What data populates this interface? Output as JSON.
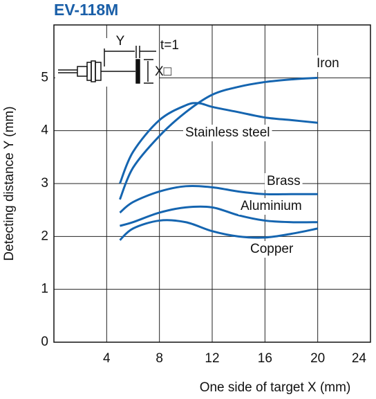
{
  "chart_data": {
    "type": "line",
    "title": "EV-118M",
    "xlabel": "One side of target X (mm)",
    "ylabel": "Detecting distance Y (mm)",
    "xlim": [
      0,
      24
    ],
    "ylim": [
      0,
      6
    ],
    "xticks": [
      4,
      8,
      12,
      16,
      20,
      24
    ],
    "yticks": [
      0,
      1,
      2,
      3,
      4,
      5
    ],
    "grid": true,
    "diagram_labels": [
      "Y",
      "t=1",
      "X□"
    ],
    "series": [
      {
        "name": "Iron",
        "color": "#1565b0",
        "x": [
          5,
          6,
          8,
          10,
          12,
          14,
          16,
          18,
          20
        ],
        "values": [
          2.7,
          3.3,
          3.9,
          4.35,
          4.68,
          4.83,
          4.92,
          4.97,
          5.0
        ]
      },
      {
        "name": "Stainless steel",
        "color": "#1565b0",
        "x": [
          5,
          6,
          8,
          10,
          11,
          12,
          14,
          16,
          18,
          20
        ],
        "values": [
          3.0,
          3.6,
          4.2,
          4.48,
          4.52,
          4.45,
          4.35,
          4.25,
          4.2,
          4.15
        ]
      },
      {
        "name": "Brass",
        "color": "#1565b0",
        "x": [
          5,
          6,
          8,
          10,
          12,
          14,
          16,
          18,
          20
        ],
        "values": [
          2.45,
          2.65,
          2.85,
          2.95,
          2.93,
          2.85,
          2.8,
          2.8,
          2.8
        ]
      },
      {
        "name": "Aluminium",
        "color": "#1565b0",
        "x": [
          5,
          6,
          8,
          10,
          12,
          14,
          16,
          18,
          20
        ],
        "values": [
          2.2,
          2.27,
          2.45,
          2.55,
          2.55,
          2.4,
          2.3,
          2.27,
          2.27
        ]
      },
      {
        "name": "Copper",
        "color": "#1565b0",
        "x": [
          5,
          6,
          8,
          10,
          12,
          14,
          16,
          18,
          20
        ],
        "values": [
          1.93,
          2.15,
          2.3,
          2.27,
          2.1,
          2.0,
          1.98,
          2.05,
          2.15
        ]
      }
    ]
  }
}
